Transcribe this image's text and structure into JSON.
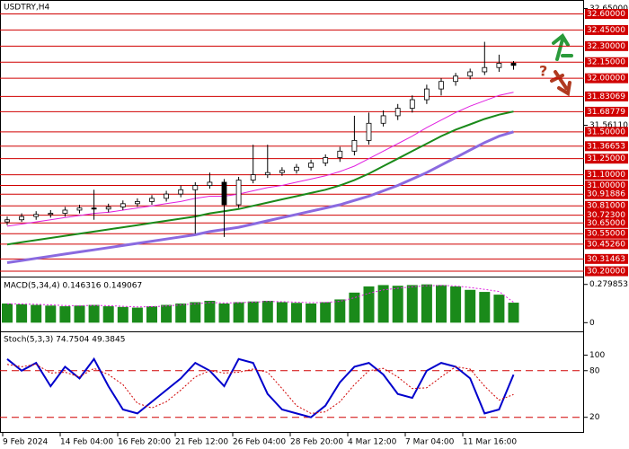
{
  "chart_data": [
    {
      "type": "candlestick",
      "title": "USDTRY,H4",
      "annotation": "?",
      "x_labels": [
        "9 Feb 2024",
        "14 Feb 04:00",
        "16 Feb 20:00",
        "21 Feb 12:00",
        "26 Feb 04:00",
        "28 Feb 20:00",
        "4 Mar 12:00",
        "7 Mar 04:00",
        "11 Mar 16:00"
      ],
      "open": [
        30.66,
        30.68,
        30.71,
        30.73,
        30.74,
        30.77,
        30.79,
        30.78,
        30.8,
        30.83,
        30.85,
        30.88,
        30.92,
        30.96,
        31.0,
        31.03,
        30.82,
        31.05,
        31.1,
        31.12,
        31.14,
        31.17,
        31.21,
        31.26,
        31.32,
        31.42,
        31.58,
        31.65,
        31.72,
        31.8,
        31.9,
        31.97,
        32.02,
        32.06,
        32.1,
        32.14
      ],
      "high": [
        30.71,
        30.74,
        30.76,
        30.77,
        30.8,
        30.82,
        30.96,
        30.83,
        30.86,
        30.88,
        30.91,
        30.95,
        31.0,
        31.03,
        31.12,
        31.06,
        31.08,
        31.38,
        31.38,
        31.17,
        31.2,
        31.24,
        31.29,
        31.36,
        31.65,
        31.68,
        31.7,
        31.76,
        31.84,
        31.94,
        32.0,
        32.05,
        32.09,
        32.34,
        32.22,
        32.16
      ],
      "low": [
        30.63,
        30.66,
        30.68,
        30.7,
        30.71,
        30.74,
        30.68,
        30.75,
        30.77,
        30.8,
        30.82,
        30.85,
        30.89,
        30.55,
        30.97,
        30.52,
        30.79,
        31.02,
        31.07,
        31.09,
        31.11,
        31.14,
        31.18,
        31.22,
        31.28,
        31.38,
        31.55,
        31.61,
        31.68,
        31.76,
        31.84,
        31.93,
        31.99,
        32.03,
        32.06,
        32.08
      ],
      "close": [
        30.68,
        30.71,
        30.73,
        30.74,
        30.77,
        30.79,
        30.78,
        30.8,
        30.83,
        30.85,
        30.88,
        30.92,
        30.96,
        31.0,
        31.03,
        30.82,
        31.05,
        31.1,
        31.12,
        31.14,
        31.17,
        31.21,
        31.26,
        31.32,
        31.42,
        31.58,
        31.65,
        31.72,
        31.8,
        31.9,
        31.97,
        32.02,
        32.06,
        32.1,
        32.14,
        32.12
      ],
      "overlays": [
        {
          "color": "#e020e0",
          "width": 1,
          "values": [
            30.62,
            30.64,
            30.66,
            30.68,
            30.7,
            30.72,
            30.74,
            30.75,
            30.77,
            30.79,
            30.81,
            30.83,
            30.85,
            30.88,
            30.9,
            30.9,
            30.92,
            30.95,
            30.98,
            31.0,
            31.03,
            31.06,
            31.09,
            31.13,
            31.18,
            31.25,
            31.32,
            31.39,
            31.46,
            31.54,
            31.61,
            31.68,
            31.74,
            31.79,
            31.84,
            31.87
          ]
        },
        {
          "color": "#1a8a1a",
          "width": 2,
          "values": [
            30.45,
            30.47,
            30.49,
            30.51,
            30.53,
            30.55,
            30.57,
            30.59,
            30.61,
            30.63,
            30.65,
            30.67,
            30.69,
            30.71,
            30.74,
            30.76,
            30.78,
            30.81,
            30.84,
            30.87,
            30.9,
            30.93,
            30.96,
            31.0,
            31.05,
            31.11,
            31.18,
            31.25,
            31.32,
            31.39,
            31.46,
            31.52,
            31.57,
            31.62,
            31.66,
            31.69
          ]
        },
        {
          "color": "#8a6ae0",
          "width": 3,
          "values": [
            30.28,
            30.3,
            30.32,
            30.34,
            30.36,
            30.38,
            30.4,
            30.42,
            30.44,
            30.46,
            30.48,
            30.5,
            30.52,
            30.54,
            30.57,
            30.59,
            30.61,
            30.64,
            30.67,
            30.7,
            30.73,
            30.76,
            30.79,
            30.82,
            30.86,
            30.9,
            30.95,
            31.0,
            31.06,
            31.12,
            31.19,
            31.26,
            31.33,
            31.4,
            31.46,
            31.5
          ]
        }
      ],
      "level_color": "#d00000",
      "levels": [
        {
          "value": 32.6,
          "label": "32.60000"
        },
        {
          "value": 32.45,
          "label": "32.45000"
        },
        {
          "value": 32.3,
          "label": "32.30000"
        },
        {
          "value": 32.15,
          "label": "32.15000"
        },
        {
          "value": 32.0,
          "label": "32.00000"
        },
        {
          "value": 31.83069,
          "label": "31.83069"
        },
        {
          "value": 31.68779,
          "label": "31.68779"
        },
        {
          "value": 31.5,
          "label": "31.50000"
        },
        {
          "value": 31.36653,
          "label": "31.36653"
        },
        {
          "value": 31.25,
          "label": "31.25000"
        },
        {
          "value": 31.1,
          "label": "31.10000"
        },
        {
          "value": 31.0,
          "label": "31.00000"
        },
        {
          "value": 30.91886,
          "label": "30.91886"
        },
        {
          "value": 30.81,
          "label": "30.81000"
        },
        {
          "value": 30.723,
          "label": "30.72300"
        },
        {
          "value": 30.65,
          "label": "30.65000"
        },
        {
          "value": 30.55,
          "label": "30.55000"
        },
        {
          "value": 30.4526,
          "label": "30.45260"
        },
        {
          "value": 30.31463,
          "label": "30.31463"
        },
        {
          "value": 30.2,
          "label": "30.20000"
        }
      ],
      "ylim": [
        30.15,
        32.73
      ],
      "yticks": [
        {
          "value": 32.65,
          "label": "32.65000"
        },
        {
          "value": 31.5611,
          "label": "31.56110"
        }
      ]
    },
    {
      "type": "bar",
      "title": "MACD(5,34,4) 0.146316 0.149067",
      "color": "#1a8a1a",
      "values": [
        0.14,
        0.135,
        0.13,
        0.125,
        0.12,
        0.125,
        0.13,
        0.12,
        0.115,
        0.11,
        0.12,
        0.13,
        0.14,
        0.15,
        0.16,
        0.14,
        0.15,
        0.155,
        0.16,
        0.15,
        0.145,
        0.14,
        0.15,
        0.17,
        0.22,
        0.265,
        0.275,
        0.27,
        0.275,
        0.28,
        0.275,
        0.265,
        0.24,
        0.225,
        0.205,
        0.146316
      ],
      "signal": {
        "color": "#e020e0",
        "values": [
          0.138,
          0.137,
          0.134,
          0.13,
          0.125,
          0.124,
          0.126,
          0.124,
          0.12,
          0.115,
          0.117,
          0.122,
          0.13,
          0.138,
          0.147,
          0.144,
          0.146,
          0.15,
          0.155,
          0.153,
          0.15,
          0.146,
          0.148,
          0.156,
          0.182,
          0.215,
          0.24,
          0.252,
          0.262,
          0.27,
          0.272,
          0.269,
          0.257,
          0.244,
          0.228,
          0.149067
        ]
      },
      "ylim": [
        -0.057,
        0.324
      ],
      "yticks": [
        0,
        0.279853
      ]
    },
    {
      "type": "line",
      "title": "Stoch(5,3,3) 74.7504 49.3845",
      "series": [
        {
          "color": "#0000cc",
          "width": 2,
          "dash": "",
          "values": [
            95,
            80,
            90,
            60,
            85,
            70,
            95,
            60,
            30,
            25,
            40,
            55,
            70,
            90,
            80,
            60,
            95,
            90,
            50,
            30,
            25,
            20,
            35,
            65,
            85,
            90,
            75,
            50,
            45,
            80,
            90,
            85,
            70,
            25,
            30,
            74.7504
          ]
        },
        {
          "color": "#d00000",
          "width": 1,
          "dash": "2 2",
          "values": [
            88,
            85,
            88,
            77,
            78,
            72,
            83,
            75,
            62,
            38,
            32,
            40,
            55,
            72,
            80,
            77,
            78,
            82,
            78,
            57,
            35,
            25,
            27,
            40,
            62,
            80,
            83,
            72,
            57,
            58,
            72,
            85,
            82,
            60,
            42,
            49.3845
          ]
        }
      ],
      "levels": [
        80,
        20
      ],
      "ylim": [
        0,
        129.4
      ],
      "yticks": [
        100,
        80,
        20
      ]
    }
  ]
}
